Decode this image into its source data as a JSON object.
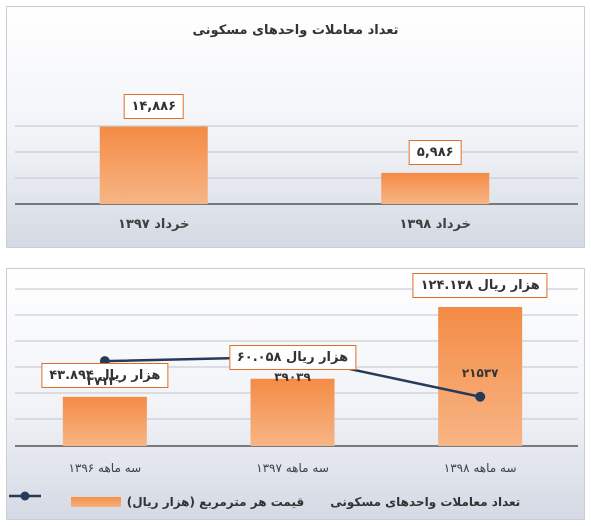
{
  "colors": {
    "bar": "#f48b45",
    "bar_light": "#f7b585",
    "line": "#263a5a",
    "grid": "#c0c4cc",
    "label_border": "#e06e2a"
  },
  "chart_data": [
    {
      "type": "bar",
      "title": "تعداد معاملات واحدهای مسکونی",
      "categories": [
        "خرداد ۱۳۹۷",
        "خرداد ۱۳۹۸"
      ],
      "values": [
        14886,
        5986
      ],
      "value_labels": [
        "۱۴,۸۸۶",
        "۵,۹۸۶"
      ],
      "ylim": [
        0,
        30000
      ],
      "grid": true
    },
    {
      "type": "bar",
      "categories": [
        "سه ماهه ۱۳۹۶",
        "سه ماهه ۱۳۹۷",
        "سه ماهه ۱۳۹۸"
      ],
      "series": [
        {
          "name": "قیمت هر مترمربع (هزار ریال)",
          "type": "bar",
          "values": [
            43894,
            60058,
            124138
          ],
          "labels": [
            "هزار ریال ۴۳.۸۹۴",
            "هزار ریال ۶۰.۰۵۸",
            "هزار ریال ۱۲۴.۱۳۸"
          ]
        },
        {
          "name": "تعداد معاملات واحدهای مسکونی",
          "type": "line",
          "values": [
            37120,
            39039,
            21537
          ],
          "labels": [
            "۳۷۱۲۰",
            "۳۹۰۳۹",
            "۲۱۵۳۷"
          ]
        }
      ],
      "ylim_bar": [
        0,
        140000
      ],
      "ylim_line": [
        0,
        70000
      ],
      "grid": true,
      "legend": "bottom"
    }
  ]
}
